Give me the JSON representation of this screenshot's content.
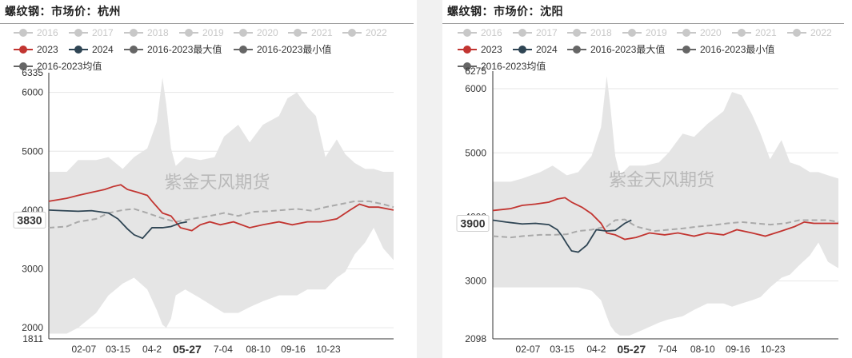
{
  "watermark": "紫金天风期货",
  "chart_data": [
    {
      "type": "area",
      "title": "螺纹钢：市场价：杭州",
      "x_ticks": [
        "02-07",
        "03-15",
        "04-2",
        "05-27",
        "07-04",
        "08-10",
        "09-16",
        "10-23"
      ],
      "x_ticks_visible": [
        "02-07",
        "03-15",
        "04-2",
        "7-04",
        "08-10",
        "09-16",
        "10-23"
      ],
      "highlight_x": "05-27",
      "ylim": [
        1811,
        6335
      ],
      "y_ticks": [
        2000,
        3000,
        4000,
        5000,
        6000
      ],
      "y_ticks_visible": [
        "1811",
        "2000",
        "3000",
        "4000",
        "5000",
        "6000",
        "6335"
      ],
      "pointer_value": "3830",
      "legend": {
        "row1": [
          "2016",
          "2017",
          "2018",
          "2019",
          "2020",
          "2021",
          "2022"
        ],
        "row2": [
          "2023",
          "2024",
          "2016-2023最大值",
          "2016-2023最小值"
        ],
        "row3": [
          "2016-2023均值"
        ]
      },
      "colors": {
        "inactive": "#c8c8c8",
        "y2023": "#c23531",
        "y2024": "#2f4554",
        "maxmin": "#666666",
        "band": "#e5e5e5",
        "mean": "#a9a9a9"
      },
      "band_upper": {
        "x": [
          "01-01",
          "01-20",
          "02-01",
          "02-20",
          "03-05",
          "03-20",
          "04-01",
          "04-15",
          "04-25",
          "05-01",
          "05-05",
          "05-10",
          "05-15",
          "05-25",
          "06-10",
          "06-25",
          "07-05",
          "07-20",
          "08-01",
          "08-15",
          "09-01",
          "09-10",
          "09-20",
          "10-01",
          "10-10",
          "10-20",
          "11-01",
          "11-10",
          "11-20",
          "12-01",
          "12-10",
          "12-20",
          "12-31"
        ],
        "y": [
          4650,
          4650,
          4850,
          4850,
          4900,
          4700,
          4900,
          5050,
          5500,
          6250,
          5800,
          5050,
          4750,
          4900,
          4850,
          4900,
          5250,
          5450,
          5150,
          5450,
          5600,
          5900,
          6000,
          5750,
          5600,
          4900,
          5200,
          4950,
          4800,
          4700,
          4700,
          4650,
          4650
        ]
      },
      "band_lower": {
        "x": [
          "01-01",
          "01-20",
          "02-01",
          "02-20",
          "03-05",
          "03-20",
          "04-01",
          "04-15",
          "04-25",
          "05-01",
          "05-05",
          "05-10",
          "05-15",
          "05-25",
          "06-10",
          "06-25",
          "07-05",
          "07-20",
          "08-01",
          "08-15",
          "09-01",
          "09-10",
          "09-20",
          "10-01",
          "10-10",
          "10-20",
          "11-01",
          "11-10",
          "11-20",
          "12-01",
          "12-10",
          "12-20",
          "12-31"
        ],
        "y": [
          1900,
          1900,
          2000,
          2250,
          2550,
          2750,
          2850,
          2650,
          2300,
          2050,
          2000,
          2150,
          2550,
          2650,
          2500,
          2350,
          2250,
          2250,
          2350,
          2450,
          2550,
          2550,
          2550,
          2650,
          2650,
          2650,
          2850,
          2950,
          3250,
          3450,
          3700,
          3350,
          3150
        ]
      },
      "mean": {
        "x": [
          "01-01",
          "01-20",
          "02-01",
          "02-20",
          "03-05",
          "03-20",
          "04-01",
          "04-15",
          "05-01",
          "05-15",
          "06-01",
          "06-20",
          "07-05",
          "07-20",
          "08-05",
          "08-20",
          "09-05",
          "09-20",
          "10-05",
          "10-20",
          "11-05",
          "11-20",
          "12-05",
          "12-20",
          "12-31"
        ],
        "y": [
          3700,
          3720,
          3800,
          3850,
          3950,
          4000,
          4020,
          3950,
          3860,
          3800,
          3850,
          3900,
          3950,
          3900,
          3970,
          3980,
          4000,
          4020,
          3990,
          4050,
          4100,
          4150,
          4150,
          4100,
          4050
        ]
      },
      "series": [
        {
          "name": "2023",
          "x": [
            "01-01",
            "01-20",
            "02-01",
            "02-15",
            "03-01",
            "03-10",
            "03-18",
            "03-25",
            "04-05",
            "04-15",
            "04-20",
            "05-01",
            "05-10",
            "05-20",
            "06-01",
            "06-10",
            "06-20",
            "07-01",
            "07-15",
            "08-01",
            "08-15",
            "09-01",
            "09-15",
            "10-01",
            "10-15",
            "11-01",
            "11-15",
            "11-25",
            "12-05",
            "12-15",
            "12-31"
          ],
          "y": [
            4150,
            4200,
            4250,
            4300,
            4350,
            4400,
            4430,
            4350,
            4300,
            4250,
            4150,
            3950,
            3900,
            3700,
            3650,
            3750,
            3800,
            3750,
            3800,
            3700,
            3750,
            3800,
            3750,
            3800,
            3800,
            3850,
            4000,
            4100,
            4050,
            4050,
            4000
          ]
        },
        {
          "name": "2024",
          "x": [
            "01-01",
            "01-15",
            "02-01",
            "02-15",
            "03-05",
            "03-15",
            "03-25",
            "04-01",
            "04-10",
            "04-20",
            "05-01",
            "05-10",
            "05-20",
            "05-27"
          ],
          "y": [
            4000,
            3990,
            3980,
            3990,
            3950,
            3850,
            3680,
            3580,
            3520,
            3700,
            3700,
            3720,
            3780,
            3800
          ]
        }
      ]
    },
    {
      "type": "area",
      "title": "螺纹钢：市场价：沈阳",
      "x_ticks": [
        "02-07",
        "03-15",
        "04-2",
        "05-27",
        "07-04",
        "08-10",
        "09-16",
        "10-23"
      ],
      "x_ticks_visible": [
        "02-07",
        "03-15",
        "04-2",
        "7-04",
        "08-10",
        "09-16",
        "10-23"
      ],
      "highlight_x": "05-27",
      "ylim": [
        2098,
        6275
      ],
      "y_ticks": [
        3000,
        4000,
        5000,
        6000
      ],
      "y_ticks_visible": [
        "2098",
        "3000",
        "4000",
        "5000",
        "6000",
        "6275"
      ],
      "pointer_value": "3900",
      "legend": {
        "row1": [
          "2016",
          "2017",
          "2018",
          "2019",
          "2020",
          "2021",
          "2022"
        ],
        "row2": [
          "2023",
          "2024",
          "2016-2023最大值",
          "2016-2023最小值"
        ],
        "row3": [
          "2016-2023均值"
        ]
      },
      "colors": {
        "inactive": "#c8c8c8",
        "y2023": "#c23531",
        "y2024": "#2f4554",
        "maxmin": "#666666",
        "band": "#e5e5e5",
        "mean": "#a9a9a9"
      },
      "band_upper": {
        "x": [
          "01-01",
          "01-20",
          "02-01",
          "02-20",
          "03-05",
          "03-20",
          "04-01",
          "04-15",
          "04-25",
          "05-01",
          "05-05",
          "05-10",
          "05-15",
          "05-25",
          "06-10",
          "06-25",
          "07-05",
          "07-20",
          "08-01",
          "08-15",
          "09-01",
          "09-10",
          "09-20",
          "10-01",
          "10-10",
          "10-20",
          "11-01",
          "11-10",
          "11-20",
          "12-01",
          "12-10",
          "12-20",
          "12-31"
        ],
        "y": [
          4550,
          4550,
          4600,
          4700,
          4800,
          4650,
          4700,
          4950,
          5400,
          6200,
          5700,
          4950,
          4650,
          4800,
          4800,
          4850,
          5000,
          5300,
          5250,
          5450,
          5650,
          5950,
          5900,
          5600,
          5300,
          4900,
          5200,
          4850,
          4800,
          4700,
          4700,
          4650,
          4600
        ]
      },
      "band_lower": {
        "x": [
          "01-01",
          "01-20",
          "02-01",
          "02-20",
          "03-05",
          "03-20",
          "04-01",
          "04-15",
          "04-25",
          "05-01",
          "05-05",
          "05-10",
          "05-15",
          "05-25",
          "06-10",
          "06-25",
          "07-05",
          "07-20",
          "08-01",
          "08-15",
          "09-01",
          "09-10",
          "09-20",
          "10-01",
          "10-10",
          "10-20",
          "11-01",
          "11-10",
          "11-20",
          "12-01",
          "12-10",
          "12-20",
          "12-31"
        ],
        "y": [
          2900,
          2900,
          2900,
          2900,
          2900,
          2900,
          2900,
          2850,
          2700,
          2450,
          2300,
          2200,
          2150,
          2150,
          2250,
          2350,
          2400,
          2450,
          2550,
          2650,
          2650,
          2600,
          2650,
          2700,
          2750,
          2900,
          3050,
          3100,
          3250,
          3400,
          3600,
          3300,
          3200
        ]
      },
      "mean": {
        "x": [
          "01-01",
          "01-20",
          "02-01",
          "02-20",
          "03-05",
          "03-20",
          "04-01",
          "04-15",
          "05-01",
          "05-10",
          "05-20",
          "06-01",
          "06-20",
          "07-05",
          "07-20",
          "08-05",
          "08-20",
          "09-05",
          "09-20",
          "10-05",
          "10-20",
          "11-05",
          "11-20",
          "12-05",
          "12-20",
          "12-31"
        ],
        "y": [
          3700,
          3680,
          3700,
          3720,
          3720,
          3730,
          3780,
          3800,
          3850,
          3950,
          3960,
          3850,
          3780,
          3800,
          3820,
          3850,
          3870,
          3900,
          3920,
          3900,
          3880,
          3900,
          3950,
          3950,
          3950,
          3920
        ]
      },
      "series": [
        {
          "name": "2023",
          "x": [
            "01-01",
            "01-20",
            "02-01",
            "02-15",
            "03-01",
            "03-10",
            "03-18",
            "03-25",
            "04-05",
            "04-15",
            "04-25",
            "05-01",
            "05-10",
            "05-20",
            "06-01",
            "06-15",
            "07-01",
            "07-15",
            "08-01",
            "08-15",
            "09-01",
            "09-15",
            "10-01",
            "10-15",
            "11-01",
            "11-15",
            "11-25",
            "12-05",
            "12-15",
            "12-31"
          ],
          "y": [
            4100,
            4130,
            4180,
            4200,
            4230,
            4280,
            4300,
            4230,
            4150,
            4050,
            3900,
            3750,
            3720,
            3650,
            3680,
            3750,
            3720,
            3750,
            3700,
            3750,
            3720,
            3800,
            3750,
            3700,
            3780,
            3850,
            3920,
            3900,
            3900,
            3900
          ]
        },
        {
          "name": "2024",
          "x": [
            "01-01",
            "01-15",
            "02-01",
            "02-15",
            "03-01",
            "03-10",
            "03-15",
            "03-20",
            "03-25",
            "04-01",
            "04-10",
            "04-20",
            "05-01",
            "05-10",
            "05-20",
            "05-27"
          ],
          "y": [
            3950,
            3920,
            3890,
            3900,
            3880,
            3800,
            3700,
            3580,
            3470,
            3450,
            3560,
            3800,
            3780,
            3790,
            3900,
            3950
          ]
        }
      ]
    }
  ]
}
